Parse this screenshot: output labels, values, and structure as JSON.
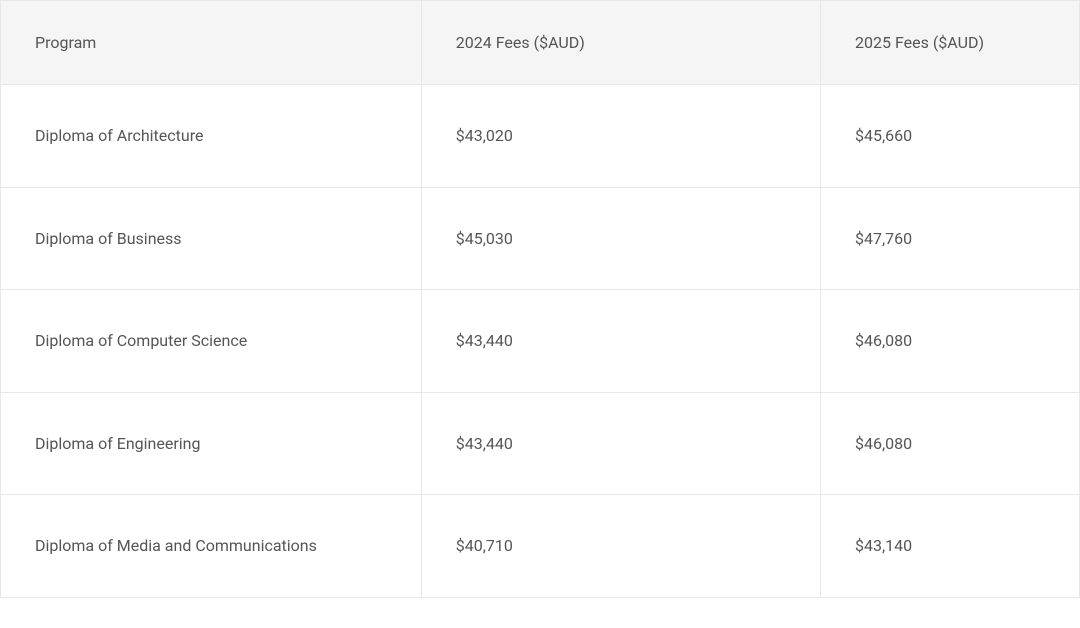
{
  "table": {
    "columns": [
      "Program",
      "2024 Fees ($AUD)",
      "2025 Fees ($AUD)"
    ],
    "rows": [
      [
        "Diploma of Architecture",
        "$43,020",
        "$45,660"
      ],
      [
        "Diploma of Business",
        "$45,030",
        "$47,760"
      ],
      [
        "Diploma of Computer Science",
        "$43,440",
        "$46,080"
      ],
      [
        "Diploma of Engineering",
        "$43,440",
        "$46,080"
      ],
      [
        "Diploma of Media and Communications",
        "$40,710",
        "$43,140"
      ]
    ],
    "header_bg": "#f5f5f5",
    "border_color": "#e8e8e8",
    "text_color": "#555555",
    "body_bg": "#ffffff",
    "font_size": 16
  }
}
